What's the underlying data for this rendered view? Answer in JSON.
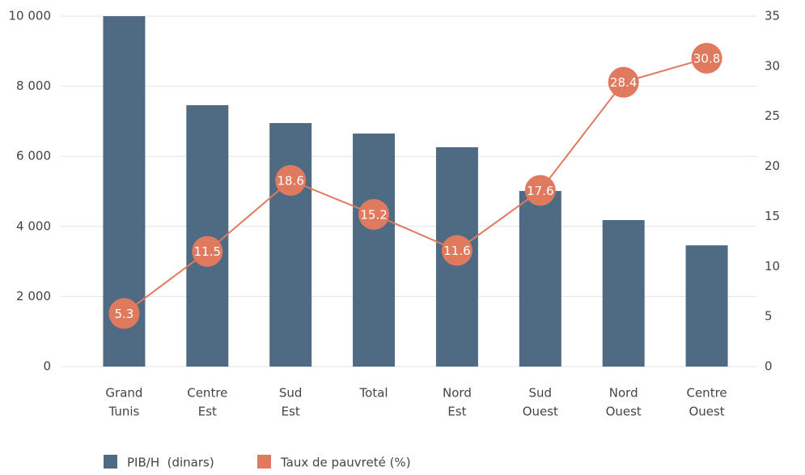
{
  "chart_data": {
    "type": "bar-line",
    "categories": [
      [
        "Grand",
        "Tunis"
      ],
      [
        "Centre",
        "Est"
      ],
      [
        "Sud",
        "Est"
      ],
      [
        "Total"
      ],
      [
        "Nord",
        "Est"
      ],
      [
        "Sud",
        "Ouest"
      ],
      [
        "Nord",
        "Ouest"
      ],
      [
        "Centre",
        "Ouest"
      ]
    ],
    "series": [
      {
        "name": "PIB/H  (dinars)",
        "color": "#4f6b84",
        "type": "bar",
        "values": [
          10000,
          7460,
          6950,
          6650,
          6260,
          5010,
          4180,
          3460
        ]
      },
      {
        "name": "Taux de pauvreté (%)",
        "color": "#e07a5f",
        "type": "line",
        "axis": "y2",
        "values": [
          5.3,
          11.5,
          18.6,
          15.2,
          11.6,
          17.6,
          28.4,
          30.8
        ]
      }
    ],
    "ylim": [
      0,
      10000
    ],
    "yticks": [
      0,
      {
        "value": 2000,
        "label": "2 000"
      },
      {
        "value": 4000,
        "label": "4 000"
      },
      {
        "value": 6000,
        "label": "6 000"
      },
      {
        "value": 8000,
        "label": "8 000"
      },
      {
        "value": 10000,
        "label": "10 000"
      }
    ],
    "y2lim": [
      0,
      35
    ],
    "y2ticks": [
      0,
      5,
      10,
      15,
      20,
      25,
      30,
      35
    ],
    "grid": true,
    "legend": "bottom"
  }
}
